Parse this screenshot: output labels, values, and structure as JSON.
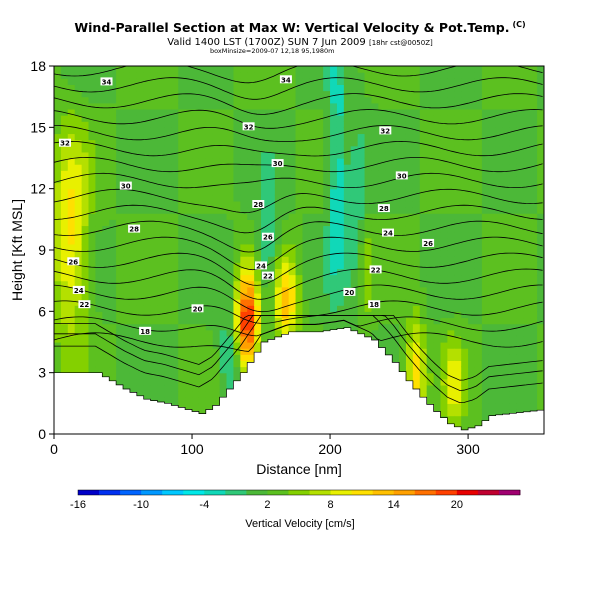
{
  "chart_data": {
    "type": "heatmap",
    "title": "Wind-Parallel Section at Max W: Vertical Velocity & Pot.Temp.",
    "title_mark": "(C)",
    "subtitle": "Valid 1400 LST (1700Z) SUN 7 Jun 2009",
    "subtitle_note": "[18hr cst@0050Z]",
    "subtitle2": "boxMinsize=2009-07 12,18 95,1980m",
    "xlabel": "Distance [nm]",
    "ylabel": "Height [Kft MSL]",
    "xlim": [
      0,
      355
    ],
    "ylim": [
      0,
      18
    ],
    "xticks": [
      "0",
      "100",
      "200",
      "300"
    ],
    "yticks": [
      "0",
      "3",
      "6",
      "9",
      "12",
      "15",
      "18"
    ],
    "colorbar": {
      "label": "Vertical Velocity [cm/s]",
      "tick_labels": [
        "-16",
        "-10",
        "-4",
        "2",
        "8",
        "14",
        "20"
      ],
      "levels": [
        -16,
        -14,
        -12,
        -10,
        -8,
        -6,
        -4,
        -2,
        0,
        2,
        4,
        6,
        8,
        10,
        12,
        14,
        16,
        18,
        20,
        22,
        24
      ],
      "colors": [
        "#0000c8",
        "#0030f0",
        "#0064ff",
        "#0098ff",
        "#00c8ff",
        "#00e8e8",
        "#10d8b8",
        "#30c878",
        "#4cb838",
        "#5cc020",
        "#84d000",
        "#b4e000",
        "#e8f000",
        "#ffe000",
        "#ffc000",
        "#ffa000",
        "#ff7000",
        "#ff4000",
        "#e80000",
        "#c00030",
        "#a00070"
      ]
    },
    "contour_labels": [
      "34",
      "34",
      "32",
      "32",
      "32",
      "30",
      "30",
      "30",
      "28",
      "28",
      "28",
      "26",
      "26",
      "26",
      "24",
      "24",
      "24",
      "22",
      "22",
      "22",
      "20",
      "20",
      "18",
      "18"
    ],
    "terrain": {
      "distance": [
        0,
        10,
        30,
        50,
        65,
        80,
        95,
        105,
        115,
        125,
        135,
        140,
        150,
        170,
        190,
        210,
        230,
        245,
        255,
        265,
        275,
        285,
        295,
        305,
        315,
        355
      ],
      "height": [
        3,
        3,
        3,
        2.2,
        1.7,
        1.5,
        1.2,
        1.0,
        1.4,
        2.2,
        3.0,
        3.5,
        4.5,
        5.0,
        5.0,
        5.2,
        4.6,
        3.5,
        2.6,
        1.8,
        1.1,
        0.5,
        0.2,
        0.4,
        0.9,
        1.2
      ]
    }
  }
}
